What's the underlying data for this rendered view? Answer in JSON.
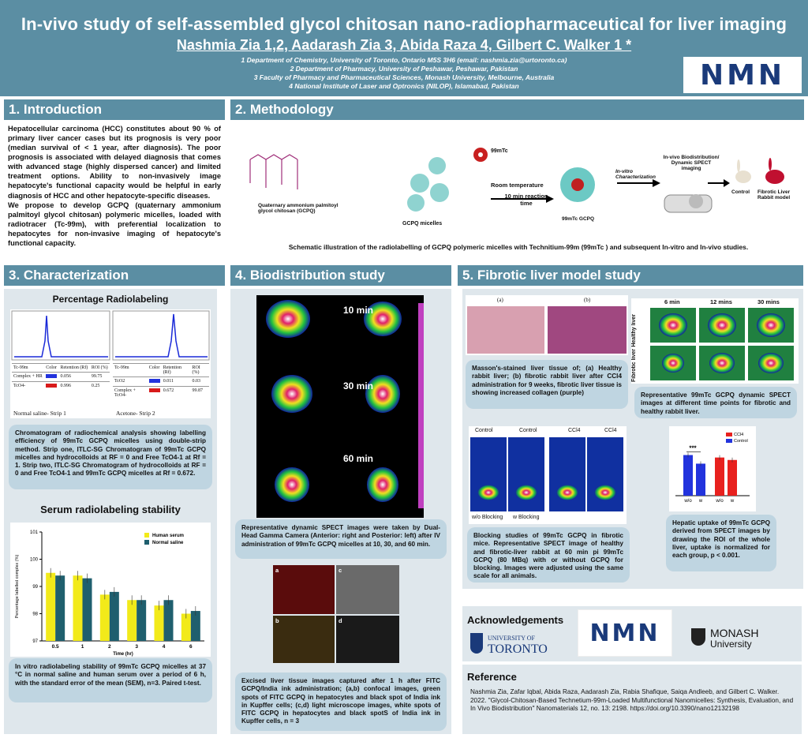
{
  "header": {
    "title": "In-vivo study of self-assembled glycol chitosan nano-radiopharmaceutical for liver imaging",
    "authors": "Nashmia Zia 1,2, Aadarash Zia 3, Abida Raza 4, Gilbert C. Walker 1 *",
    "aff1": "1 Department of Chemistry, University of Toronto, Ontario M5S 3H6 (email: nashmia.zia@urtoronto.ca)",
    "aff2": "2 Department of Pharmacy, University of Peshawar, Peshawar, Pakistan",
    "aff3": "3 Faculty of Pharmacy and Pharmaceutical Sciences, Monash University, Melbourne, Australia",
    "aff4": "4 National Institute of Laser and Optronics (NILOP), Islamabad, Pakistan",
    "logo": "NMN"
  },
  "intro": {
    "heading": "1. Introduction",
    "p1": "Hepatocellular carcinoma (HCC) constitutes about 90 % of primary liver cancer cases but its prognosis is very poor (median survival of < 1 year, after diagnosis). The poor prognosis is associated with delayed diagnosis that comes with advanced stage (highly dispersed cancer) and limited treatment options. Ability to non-invasively image hepatocyte's functional capacity would be helpful in early diagnosis of HCC and other hepatocyte-specific diseases.",
    "p2": "We propose to develop GCPQ (quaternary ammonium palmitoyl glycol chitosan) polymeric micelles, loaded with radiotracer (Tc-99m), with preferential localization to hepatocytes for non-invasive imaging of hepatocyte's functional capacity."
  },
  "methodology": {
    "heading": "2. Methodology",
    "label_gcpq": "Quaternary ammonium palmitoyl glycol chitosan (GCPQ)",
    "label_micelles": "GCPQ micelles",
    "label_tc": "99mTc",
    "label_rt": "Room temperature",
    "label_time": "10 min reaction time",
    "label_tcgcpq": "99mTc GCPQ",
    "label_invitro": "In-vitro Characterization",
    "label_invivo": "In-vivo Biodistribution/ Dynamic SPECT imaging",
    "label_control": "Control",
    "label_fibrotic": "Fibrotic Liver Rabbit model",
    "caption": "Schematic illustration of the radiolabelling of GCPQ polymeric micelles with Technitium-99m (99mTc ) and subsequent In-vitro and In-vivo studies."
  },
  "characterization": {
    "heading": "3. Characterization",
    "chart1_title": "Percentage Radiolabeling",
    "table1": {
      "headers": [
        "Tc-99m",
        "Color",
        "Retention (Rf)",
        "ROI (%)"
      ],
      "rows": [
        [
          "Complex + HR",
          "",
          "0.056",
          "99.75"
        ],
        [
          "TcO4-",
          "",
          "0.996",
          "0.25"
        ]
      ]
    },
    "table2": {
      "headers": [
        "Tc-99m",
        "Color",
        "Retention (Rf)",
        "ROI (%)"
      ],
      "rows": [
        [
          "TcO2",
          "",
          "0.011",
          "0.03"
        ],
        [
          "Complex + TcO4-",
          "",
          "0.672",
          "99.87"
        ]
      ]
    },
    "strip1": "Normal saline- Strip 1",
    "strip2": "Acetone- Strip 2",
    "caption1": "Chromatogram of radiochemical analysis showing labelling efficiency of 99mTc GCPQ micelles using double-strip method. Strip one, ITLC-SG Chromatogram of 99mTc GCPQ micelles and hydrocolloids at RF = 0 and Free TcO4-1 at Rf = 1. Strip two, ITLC-SG Chromatogram of hydrocolloids at RF = 0 and Free TcO4-1 and 99mTc GCPQ micelles at Rf = 0.672.",
    "chart2_title": "Serum radiolabeling stability",
    "caption2": "In vitro radiolabeling stability of 99mTc GCPQ micelles at 37 °C in normal saline and human serum over a period of 6 h, with the standard error of the mean (SEM), n=3. Paired t-test."
  },
  "chart_data": [
    {
      "type": "bar",
      "title": "Serum radiolabeling stability",
      "xlabel": "Time (hr)",
      "ylabel": "Percentage labelled complex (%)",
      "categories": [
        "0.5",
        "1",
        "2",
        "3",
        "4",
        "6"
      ],
      "ylim": [
        97,
        101
      ],
      "yticks": [
        "97",
        "98",
        "99",
        "100",
        "101"
      ],
      "legend": "top-right",
      "series": [
        {
          "name": "Human serum",
          "color": "#f2ea1a",
          "values": [
            99.5,
            99.4,
            98.7,
            98.5,
            98.3,
            98.0
          ]
        },
        {
          "name": "Normal saline",
          "color": "#1f5f6e",
          "values": [
            99.4,
            99.3,
            98.8,
            98.5,
            98.5,
            98.1
          ]
        }
      ]
    },
    {
      "type": "bar",
      "title": "",
      "categories": [
        "w/o",
        "w",
        "w/o",
        "w"
      ],
      "ylim": [
        0,
        1
      ],
      "legend": "top-right",
      "annotation": "***",
      "series": [
        {
          "name": "CCl4",
          "color": "#e8211e",
          "values": [
            null,
            null,
            0.62,
            0.58
          ]
        },
        {
          "name": "Control",
          "color": "#2233dd",
          "values": [
            0.66,
            0.52,
            null,
            null
          ]
        }
      ]
    }
  ],
  "biodistribution": {
    "heading": "4. Biodistribution study",
    "t1": "10 min",
    "t2": "30 min",
    "t3": "60 min",
    "caption1": "Representative dynamic SPECT images were taken by Dual-Head Gamma Camera (Anterior: right and Posterior: left) after IV administration of 99mTc GCPQ micelles at 10, 30, and 60 min.",
    "panel_a": "a",
    "panel_b": "b",
    "panel_c": "c",
    "panel_d": "d",
    "caption2": "Excised liver tissue images captured after 1 h after FITC GCPQ/India ink administration; (a,b) confocal images, green spots of FITC GCPQ in hepatocytes and black spot of India ink in Kupffer cells; (c,d) light microscope images, white spots of FITC GCPQ in hepatocytes and black spotS of India ink in Kupffer cells, n = 3"
  },
  "fibrotic": {
    "heading": "5. Fibrotic liver model study",
    "img_a": "(a)",
    "img_b": "(b)",
    "caption_masson": "Masson's-stained liver tissue of; (a) Healthy rabbit liver; (b) fibrotic rabbit liver after CCl4 administration for 9 weeks, fibrotic liver tissue is showing increased collagen (purple)",
    "t6": "6 min",
    "t12": "12 mins",
    "t30": "30 mins",
    "healthy": "Healthy liver",
    "fibrotic_l": "Fibrotic liver",
    "caption_dynamic": "Representative 99mTc GCPQ dynamic SPECT images at different time points for fibrotic and healthy rabbit liver.",
    "blk_control1": "Control",
    "blk_control2": "Control",
    "blk_ccl1": "CCl4",
    "blk_ccl2": "CCl4",
    "wo_blocking": "w/o Blocking",
    "w_blocking": "w Blocking",
    "caption_blocking": "Blocking studies of 99mTc GCPQ in fibrotic mice. Representative SPECT image of healthy and fibrotic-liver rabbit at 60 min pi 99mTc GCPQ (80 MBq) with or without GCPQ for blocking. Images were adjusted using the same scale for all animals.",
    "caption_uptake": "Hepatic uptake of 99mTc GCPQ derived from SPECT images by drawing the ROI of the whole liver, uptake is normalized for each group, p < 0.001."
  },
  "ack": {
    "heading": "Acknowledgements",
    "toronto1": "UNIVERSITY OF",
    "toronto2": "TORONTO",
    "nmn": "NMN",
    "monash1": "MONASH",
    "monash2": "University"
  },
  "reference": {
    "heading": "Reference",
    "text": "Nashmia Zia, Zafar Iqbal, Abida Raza, Aadarash Zia, Rabia Shafique, Saiqa Andleeb, and Gilbert C. Walker. 2022. \"Glycol-Chitosan-Based Technetium-99m-Loaded Multifunctional Nanomicelles: Synthesis, Evaluation, and In Vivo Biodistribution\" Nanomaterials 12, no. 13: 2198. https://doi.org/10.3390/nano12132198"
  }
}
